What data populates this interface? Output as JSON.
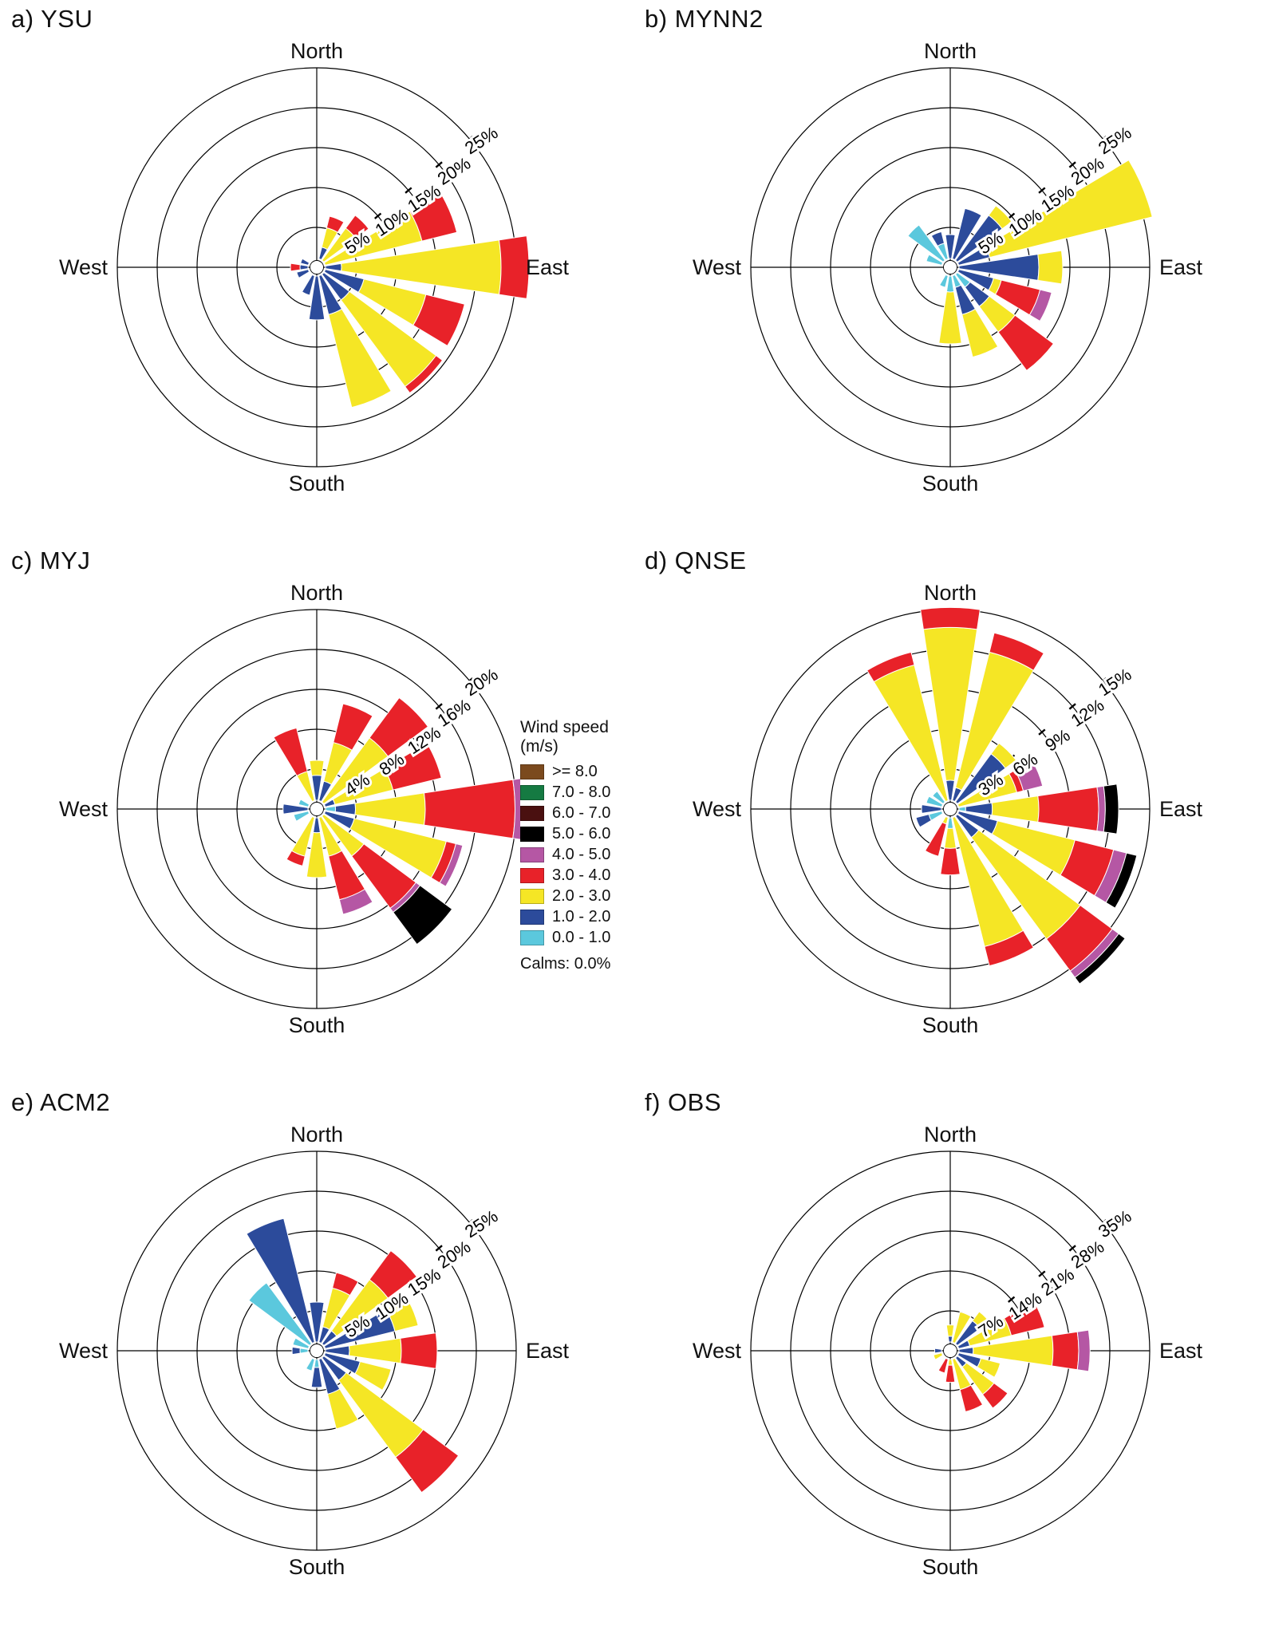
{
  "chart_data": {
    "type": "windrose",
    "units": "frequency percent of winds from each direction, stacked by wind speed bin",
    "directions": {
      "north": "North",
      "south": "South",
      "east": "East",
      "west": "West"
    },
    "legend": {
      "title_line1": "Wind speed",
      "title_line2": "(m/s)",
      "calms": "Calms: 0.0%",
      "bins": [
        {
          "label": ">= 8.0",
          "color": "#7B4A1E"
        },
        {
          "label": "7.0 - 8.0",
          "color": "#157A42"
        },
        {
          "label": "6.0 - 7.0",
          "color": "#4A1010"
        },
        {
          "label": "5.0 - 6.0",
          "color": "#000000"
        },
        {
          "label": "4.0 - 5.0",
          "color": "#B557A4"
        },
        {
          "label": "3.0 - 4.0",
          "color": "#E82229"
        },
        {
          "label": "2.0 - 3.0",
          "color": "#F5E625"
        },
        {
          "label": "1.0 - 2.0",
          "color": "#2C4B9B"
        },
        {
          "label": "0.0 - 1.0",
          "color": "#5BC8DD"
        }
      ]
    },
    "roses": [
      {
        "id": "a",
        "title": "a) YSU",
        "ring_max": 25,
        "ring_labels": [
          "5%",
          "10%",
          "15%",
          "20%",
          "25%"
        ],
        "petals": [
          {
            "dir": 22.5,
            "segments": {
              "1.0 - 2.0": 1.5,
              "2.0 - 3.0": 2.5,
              "3.0 - 4.0": 1.5
            }
          },
          {
            "dir": 45,
            "segments": {
              "2.0 - 3.0": 5,
              "3.0 - 4.0": 2
            }
          },
          {
            "dir": 67.5,
            "segments": {
              "2.0 - 3.0": 12.5,
              "3.0 - 4.0": 4.5
            }
          },
          {
            "dir": 90,
            "segments": {
              "1.0 - 2.0": 2,
              "2.0 - 3.0": 20,
              "3.0 - 4.0": 3.5
            }
          },
          {
            "dir": 112.5,
            "segments": {
              "1.0 - 2.0": 5,
              "2.0 - 3.0": 8,
              "3.0 - 4.0": 5
            }
          },
          {
            "dir": 135,
            "segments": {
              "1.0 - 2.0": 4,
              "2.0 - 3.0": 13.5,
              "3.0 - 4.0": 1
            }
          },
          {
            "dir": 157.5,
            "segments": {
              "1.0 - 2.0": 5,
              "2.0 - 3.0": 12
            }
          },
          {
            "dir": 180,
            "segments": {
              "1.0 - 2.0": 5.5
            }
          },
          {
            "dir": 202.5,
            "segments": {
              "1.0 - 2.0": 2.5
            }
          },
          {
            "dir": 247.5,
            "segments": {
              "1.0 - 2.0": 1.5
            }
          },
          {
            "dir": 270,
            "segments": {
              "1.0 - 2.0": 1,
              "3.0 - 4.0": 1.2
            }
          },
          {
            "dir": 292.5,
            "segments": {
              "1.0 - 2.0": 1
            }
          }
        ]
      },
      {
        "id": "b",
        "title": "b) MYNN2",
        "ring_max": 25,
        "ring_labels": [
          "5%",
          "10%",
          "15%",
          "20%",
          "25%"
        ],
        "petals": [
          {
            "dir": 0,
            "segments": {
              "1.0 - 2.0": 3
            }
          },
          {
            "dir": 22.5,
            "segments": {
              "1.0 - 2.0": 6.5
            }
          },
          {
            "dir": 45,
            "segments": {
              "1.0 - 2.0": 7,
              "2.0 - 3.0": 1.5
            }
          },
          {
            "dir": 67.5,
            "segments": {
              "1.0 - 2.0": 4,
              "2.0 - 3.0": 21
            }
          },
          {
            "dir": 90,
            "segments": {
              "1.0 - 2.0": 10,
              "2.0 - 3.0": 3
            }
          },
          {
            "dir": 112.5,
            "segments": {
              "1.0 - 2.0": 4.5,
              "2.0 - 3.0": 1,
              "3.0 - 4.0": 5,
              "4.0 - 5.0": 1.5
            }
          },
          {
            "dir": 135,
            "segments": {
              "0.0 - 1.0": 2,
              "1.0 - 2.0": 3,
              "2.0 - 3.0": 4,
              "3.0 - 4.0": 6
            }
          },
          {
            "dir": 157.5,
            "segments": {
              "0.0 - 1.0": 1.5,
              "1.0 - 2.0": 3.5,
              "2.0 - 3.0": 5.5
            }
          },
          {
            "dir": 180,
            "segments": {
              "0.0 - 1.0": 2,
              "2.0 - 3.0": 6.5
            }
          },
          {
            "dir": 202.5,
            "segments": {
              "0.0 - 1.0": 1.5
            }
          },
          {
            "dir": 292.5,
            "segments": {
              "0.0 - 1.0": 2
            }
          },
          {
            "dir": 315,
            "segments": {
              "0.0 - 1.0": 5.5
            }
          },
          {
            "dir": 337.5,
            "segments": {
              "0.0 - 1.0": 2,
              "1.0 - 2.0": 1.5
            }
          }
        ]
      },
      {
        "id": "c",
        "title": "c) MYJ",
        "ring_max": 20,
        "ring_labels": [
          "4%",
          "8%",
          "12%",
          "16%",
          "20%"
        ],
        "petals": [
          {
            "dir": 337.5,
            "segments": {
              "2.0 - 3.0": 3,
              "3.0 - 4.0": 4.5
            }
          },
          {
            "dir": 0,
            "segments": {
              "1.0 - 2.0": 2.5,
              "2.0 - 3.0": 1.5
            }
          },
          {
            "dir": 22.5,
            "segments": {
              "1.0 - 2.0": 2,
              "2.0 - 3.0": 4,
              "3.0 - 4.0": 4
            }
          },
          {
            "dir": 45,
            "segments": {
              "2.0 - 3.0": 8,
              "3.0 - 4.0": 5
            }
          },
          {
            "dir": 67.5,
            "segments": {
              "1.0 - 2.0": 1,
              "2.0 - 3.0": 6,
              "3.0 - 4.0": 5
            }
          },
          {
            "dir": 90,
            "segments": {
              "0.0 - 1.0": 1,
              "1.0 - 2.0": 2,
              "2.0 - 3.0": 7,
              "3.0 - 4.0": 9,
              "4.0 - 5.0": 1
            }
          },
          {
            "dir": 112.5,
            "segments": {
              "1.0 - 2.0": 3,
              "2.0 - 3.0": 9.5,
              "3.0 - 4.0": 1,
              "4.0 - 5.0": 0.7
            }
          },
          {
            "dir": 135,
            "segments": {
              "2.0 - 3.0": 5,
              "3.0 - 4.0": 6.5,
              "4.0 - 5.0": 0.5,
              "5.0 - 6.0": 4
            }
          },
          {
            "dir": 157.5,
            "segments": {
              "2.0 - 3.0": 4,
              "3.0 - 4.0": 4.5,
              "4.0 - 5.0": 1.5
            }
          },
          {
            "dir": 180,
            "segments": {
              "1.0 - 2.0": 1.5,
              "2.0 - 3.0": 4.5
            }
          },
          {
            "dir": 202.5,
            "segments": {
              "2.0 - 3.0": 4,
              "3.0 - 4.0": 1
            }
          },
          {
            "dir": 247.5,
            "segments": {
              "0.0 - 1.0": 1.5
            }
          },
          {
            "dir": 270,
            "segments": {
              "1.0 - 2.0": 2.5
            }
          },
          {
            "dir": 292.5,
            "segments": {
              "0.0 - 1.0": 1
            }
          }
        ]
      },
      {
        "id": "d",
        "title": "d) QNSE",
        "ring_max": 15,
        "ring_labels": [
          "3%",
          "6%",
          "9%",
          "12%",
          "15%"
        ],
        "petals": [
          {
            "dir": 337.5,
            "segments": {
              "2.0 - 3.0": 10.5,
              "3.0 - 4.0": 1
            }
          },
          {
            "dir": 0,
            "segments": {
              "1.0 - 2.0": 1.5,
              "2.0 - 3.0": 11.5,
              "3.0 - 4.0": 1.5
            }
          },
          {
            "dir": 22.5,
            "segments": {
              "1.0 - 2.0": 1,
              "2.0 - 3.0": 10.5,
              "3.0 - 4.0": 1.5
            }
          },
          {
            "dir": 45,
            "segments": {
              "1.0 - 2.0": 4.5,
              "2.0 - 3.0": 1
            }
          },
          {
            "dir": 67.5,
            "segments": {
              "2.0 - 3.0": 4.5,
              "3.0 - 4.0": 0.5,
              "4.0 - 5.0": 1.5
            }
          },
          {
            "dir": 90,
            "segments": {
              "0.0 - 1.0": 0.5,
              "1.0 - 2.0": 2,
              "2.0 - 3.0": 3.5,
              "3.0 - 4.0": 4.5,
              "4.0 - 5.0": 0.5,
              "5.0 - 6.0": 1
            }
          },
          {
            "dir": 112.5,
            "segments": {
              "1.0 - 2.0": 3,
              "2.0 - 3.0": 6,
              "3.0 - 4.0": 3,
              "4.0 - 5.0": 1,
              "5.0 - 6.0": 0.8
            }
          },
          {
            "dir": 135,
            "segments": {
              "1.0 - 2.0": 2,
              "2.0 - 3.0": 9.5,
              "3.0 - 4.0": 3,
              "4.0 - 5.0": 0.6,
              "5.0 - 6.0": 0.6
            }
          },
          {
            "dir": 157.5,
            "segments": {
              "2.0 - 3.0": 10,
              "3.0 - 4.0": 1.5
            }
          },
          {
            "dir": 180,
            "segments": {
              "0.0 - 1.0": 0.8,
              "2.0 - 3.0": 1.5,
              "3.0 - 4.0": 2
            }
          },
          {
            "dir": 202.5,
            "segments": {
              "2.0 - 3.0": 0.5,
              "3.0 - 4.0": 2.5
            }
          },
          {
            "dir": 247.5,
            "segments": {
              "0.0 - 1.0": 1,
              "1.0 - 2.0": 1
            }
          },
          {
            "dir": 270,
            "segments": {
              "1.0 - 2.0": 1.5
            }
          },
          {
            "dir": 292.5,
            "segments": {
              "0.0 - 1.0": 1.2
            }
          },
          {
            "dir": 315,
            "segments": {
              "0.0 - 1.0": 1
            }
          }
        ]
      },
      {
        "id": "e",
        "title": "e) ACM2",
        "ring_max": 25,
        "ring_labels": [
          "5%",
          "10%",
          "15%",
          "20%",
          "25%"
        ],
        "petals": [
          {
            "dir": 337.5,
            "segments": {
              "1.0 - 2.0": 16
            }
          },
          {
            "dir": 315,
            "segments": {
              "0.0 - 1.0": 9.5
            }
          },
          {
            "dir": 0,
            "segments": {
              "1.0 - 2.0": 5
            }
          },
          {
            "dir": 22.5,
            "segments": {
              "1.0 - 2.0": 2,
              "2.0 - 3.0": 5,
              "3.0 - 4.0": 2
            }
          },
          {
            "dir": 45,
            "segments": {
              "1.0 - 2.0": 2,
              "2.0 - 3.0": 8,
              "3.0 - 4.0": 4.5
            }
          },
          {
            "dir": 67.5,
            "segments": {
              "1.0 - 2.0": 9,
              "2.0 - 3.0": 3
            }
          },
          {
            "dir": 90,
            "segments": {
              "1.0 - 2.0": 3,
              "2.0 - 3.0": 6.5,
              "3.0 - 4.0": 4.5
            }
          },
          {
            "dir": 112.5,
            "segments": {
              "1.0 - 2.0": 4.5,
              "2.0 - 3.0": 4
            }
          },
          {
            "dir": 135,
            "segments": {
              "1.0 - 2.0": 3.5,
              "2.0 - 3.0": 12,
              "3.0 - 4.0": 5.5
            }
          },
          {
            "dir": 157.5,
            "segments": {
              "1.0 - 2.0": 4.5,
              "2.0 - 3.0": 4.5
            }
          },
          {
            "dir": 180,
            "segments": {
              "0.0 - 1.0": 1,
              "1.0 - 2.0": 2.5
            }
          },
          {
            "dir": 202.5,
            "segments": {
              "0.0 - 1.0": 1.5
            }
          },
          {
            "dir": 270,
            "segments": {
              "0.0 - 1.0": 1,
              "1.0 - 2.0": 1
            }
          },
          {
            "dir": 292.5,
            "segments": {
              "0.0 - 1.0": 2
            }
          }
        ]
      },
      {
        "id": "f",
        "title": "f) OBS",
        "ring_max": 35,
        "ring_labels": [
          "7%",
          "14%",
          "21%",
          "28%",
          "35%"
        ],
        "petals": [
          {
            "dir": 0,
            "segments": {
              "1.0 - 2.0": 1,
              "2.0 - 3.0": 2
            }
          },
          {
            "dir": 22.5,
            "segments": {
              "2.0 - 3.0": 5.5
            }
          },
          {
            "dir": 45,
            "segments": {
              "1.0 - 2.0": 5,
              "2.0 - 3.0": 2
            }
          },
          {
            "dir": 67.5,
            "segments": {
              "1.0 - 2.0": 2,
              "2.0 - 3.0": 7.5,
              "3.0 - 4.0": 6
            }
          },
          {
            "dir": 90,
            "segments": {
              "1.0 - 2.0": 2.5,
              "2.0 - 3.0": 14,
              "3.0 - 4.0": 4.5,
              "4.0 - 5.0": 2
            }
          },
          {
            "dir": 112.5,
            "segments": {
              "1.0 - 2.0": 4,
              "2.0 - 3.0": 3.5
            }
          },
          {
            "dir": 135,
            "segments": {
              "1.0 - 2.0": 2,
              "2.0 - 3.0": 6,
              "3.0 - 4.0": 3
            }
          },
          {
            "dir": 157.5,
            "segments": {
              "2.0 - 3.0": 5.5,
              "3.0 - 4.0": 4
            }
          },
          {
            "dir": 180,
            "segments": {
              "2.0 - 3.0": 1,
              "3.0 - 4.0": 3
            }
          },
          {
            "dir": 202.5,
            "segments": {
              "3.0 - 4.0": 2.5
            }
          },
          {
            "dir": 247.5,
            "segments": {
              "2.0 - 3.0": 1.5
            }
          },
          {
            "dir": 270,
            "segments": {
              "1.0 - 2.0": 1.2
            }
          }
        ]
      }
    ]
  }
}
